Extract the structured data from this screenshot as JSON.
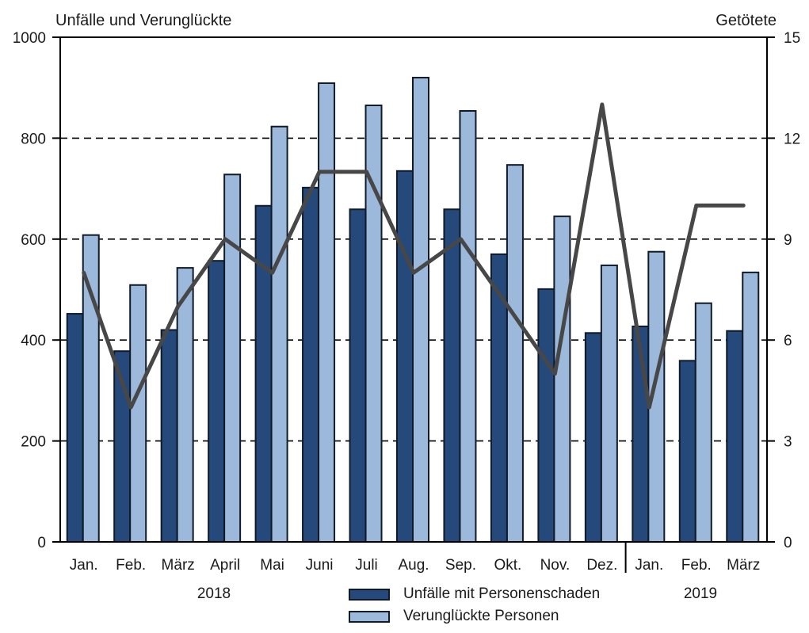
{
  "colors": {
    "bar_dark": "#25497a",
    "bar_light": "#9cb9dc",
    "bar_outline": "#101a28",
    "line": "#474747",
    "axis": "#000000",
    "grid": "#000000",
    "text": "#1a1a1a",
    "background": "#ffffff"
  },
  "chart_data": {
    "type": "bar+line",
    "title": "",
    "categories": [
      "Jan.",
      "Feb.",
      "März",
      "April",
      "Mai",
      "Juni",
      "Juli",
      "Aug.",
      "Sep.",
      "Okt.",
      "Nov.",
      "Dez.",
      "Jan.",
      "Feb.",
      "März"
    ],
    "year_groups": [
      {
        "label": "2018",
        "start": 0,
        "count": 12
      },
      {
        "label": "2019",
        "start": 12,
        "count": 3
      }
    ],
    "left_axis": {
      "label": "Unfälle und Verunglückte",
      "min": 0,
      "max": 1000,
      "ticks": [
        0,
        200,
        400,
        600,
        800,
        1000
      ]
    },
    "right_axis": {
      "label": "Getötete",
      "min": 0,
      "max": 15,
      "ticks": [
        0,
        3,
        6,
        9,
        12,
        15
      ]
    },
    "gridlines": {
      "values": [
        200,
        400,
        600,
        800
      ],
      "style": "dashed"
    },
    "legend_position": "bottom",
    "series": [
      {
        "name": "Unfälle mit Personenschaden",
        "kind": "bar",
        "axis": "left",
        "color": "#25497a",
        "values": [
          452,
          378,
          420,
          557,
          666,
          702,
          659,
          735,
          659,
          570,
          501,
          414,
          427,
          359,
          418
        ]
      },
      {
        "name": "Verunglückte Personen",
        "kind": "bar",
        "axis": "left",
        "color": "#9cb9dc",
        "values": [
          608,
          509,
          543,
          728,
          823,
          909,
          865,
          920,
          854,
          747,
          645,
          548,
          575,
          473,
          534
        ]
      },
      {
        "name": "Getötete",
        "kind": "line",
        "axis": "right",
        "color": "#474747",
        "values": [
          8,
          4,
          7,
          9,
          8,
          11,
          11,
          8,
          9,
          7,
          5,
          13,
          4,
          10,
          10
        ]
      }
    ]
  }
}
